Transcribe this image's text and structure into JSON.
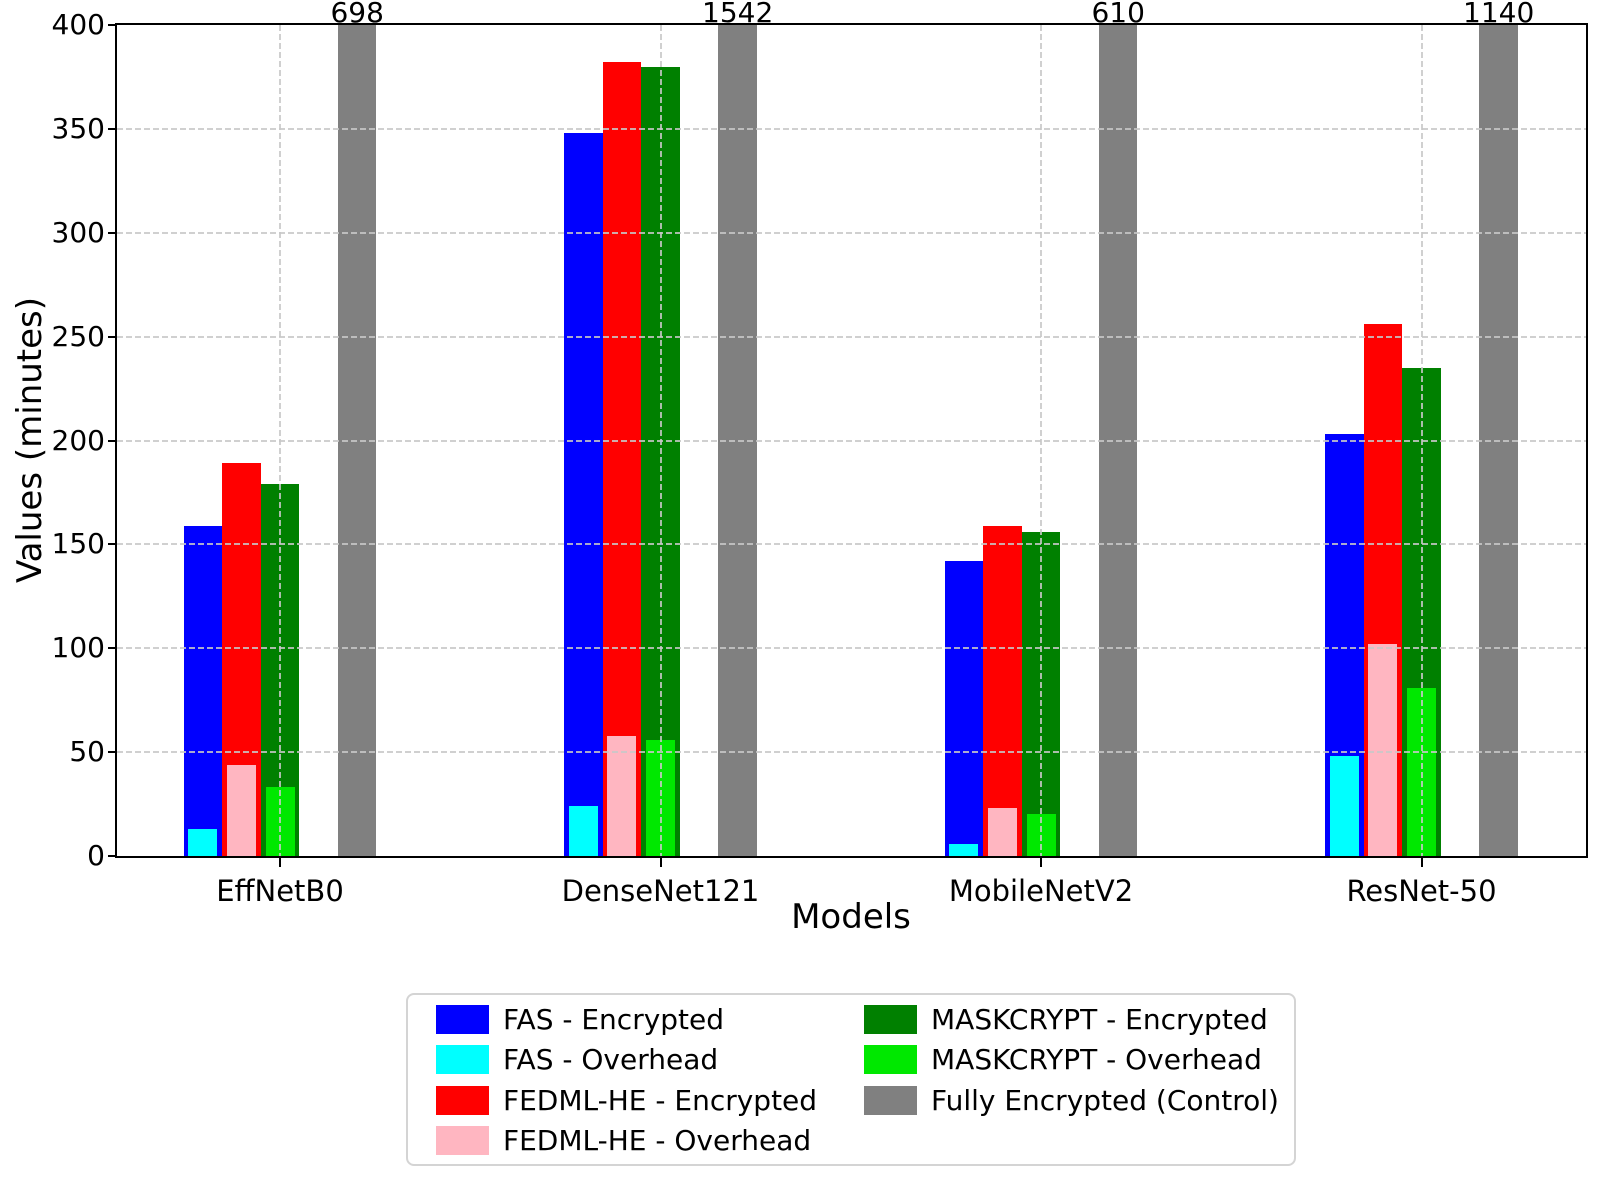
{
  "chart_data": {
    "type": "bar",
    "title": "",
    "xlabel": "Models",
    "ylabel": "Values (minutes)",
    "ylim": [
      0,
      400
    ],
    "yticks": [
      0,
      50,
      100,
      150,
      200,
      250,
      300,
      350,
      400
    ],
    "grid": "dashed gridlines on both axes, drawn over bars",
    "legend_position": "below plot, centered, two columns",
    "categories": [
      "EffNetB0",
      "DenseNet121",
      "MobileNetV2",
      "ResNet-50"
    ],
    "series": [
      {
        "name": "FAS - Encrypted",
        "color": "#0000FF",
        "role": "encrypted",
        "slot": 0,
        "values": [
          159,
          348,
          142,
          203
        ]
      },
      {
        "name": "FAS - Overhead",
        "color": "#00FFFF",
        "role": "overhead",
        "slot": 0,
        "values": [
          13,
          24,
          6,
          48
        ]
      },
      {
        "name": "FEDML-HE - Encrypted",
        "color": "#FF0000",
        "role": "encrypted",
        "slot": 1,
        "values": [
          189,
          382,
          159,
          256
        ]
      },
      {
        "name": "FEDML-HE - Overhead",
        "color": "#FFB6C1",
        "role": "overhead",
        "slot": 1,
        "values": [
          44,
          58,
          23,
          102
        ]
      },
      {
        "name": "MASKCRYPT - Encrypted",
        "color": "#008000",
        "role": "encrypted",
        "slot": 2,
        "values": [
          179,
          380,
          156,
          235
        ]
      },
      {
        "name": "MASKCRYPT - Overhead",
        "color": "#00E800",
        "role": "overhead",
        "slot": 2,
        "values": [
          33,
          56,
          20,
          81
        ]
      },
      {
        "name": "Fully Encrypted (Control)",
        "color": "#808080",
        "role": "control",
        "slot": 3,
        "values": [
          698,
          1542,
          610,
          1140
        ],
        "clipped_at_ymax": true,
        "value_labels": [
          "698",
          "1542",
          "610",
          "1140"
        ]
      }
    ]
  }
}
